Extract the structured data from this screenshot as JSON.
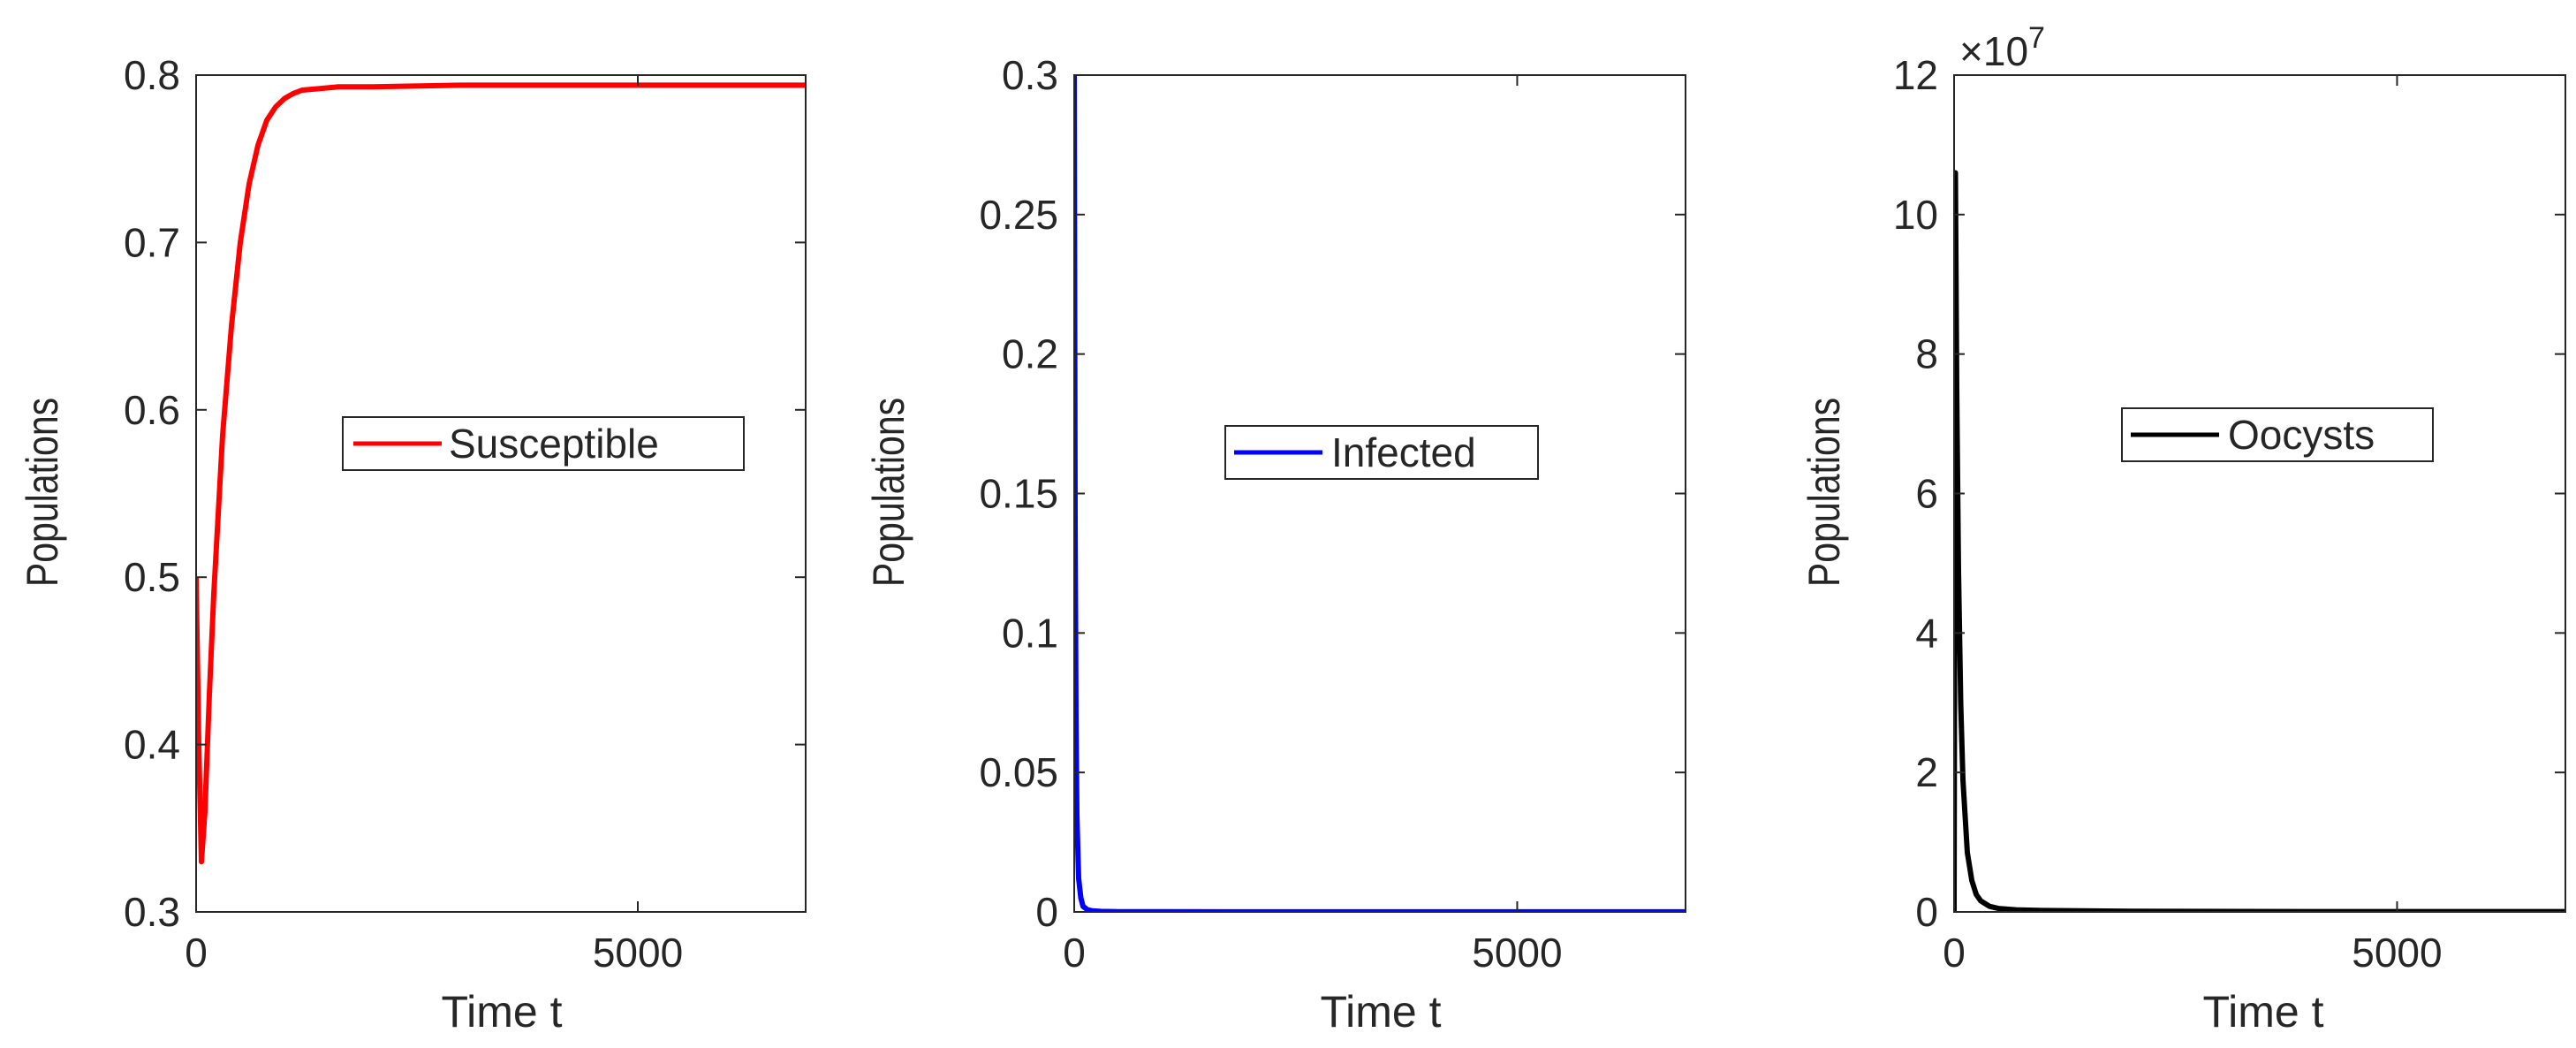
{
  "chart_data": [
    {
      "type": "line",
      "xlabel": "Time t",
      "ylabel": "Populations",
      "xlim": [
        0,
        6900
      ],
      "ylim": [
        0.3,
        0.8
      ],
      "xticks": [
        0,
        5000
      ],
      "xtick_labels": [
        "0",
        "5000"
      ],
      "yticks": [
        0.3,
        0.4,
        0.5,
        0.6,
        0.7,
        0.8
      ],
      "ytick_labels": [
        "0.3",
        "0.4",
        "0.5",
        "0.6",
        "0.7",
        "0.8"
      ],
      "legend_position": "center-right",
      "grid": false,
      "series": [
        {
          "name": "Susceptible",
          "color": "#ff0000",
          "x": [
            0,
            30,
            60,
            100,
            150,
            200,
            300,
            400,
            500,
            600,
            700,
            800,
            900,
            1000,
            1100,
            1200,
            1400,
            1600,
            2000,
            3000,
            4000,
            5000,
            6000,
            6900
          ],
          "y": [
            0.5,
            0.4,
            0.33,
            0.36,
            0.43,
            0.49,
            0.585,
            0.65,
            0.7,
            0.735,
            0.758,
            0.773,
            0.781,
            0.786,
            0.789,
            0.791,
            0.792,
            0.793,
            0.793,
            0.794,
            0.794,
            0.794,
            0.794,
            0.794
          ]
        }
      ]
    },
    {
      "type": "line",
      "xlabel": "Time t",
      "ylabel": "Populations",
      "xlim": [
        0,
        6900
      ],
      "ylim": [
        0,
        0.3
      ],
      "xticks": [
        0,
        5000
      ],
      "xtick_labels": [
        "0",
        "5000"
      ],
      "yticks": [
        0,
        0.05,
        0.1,
        0.15,
        0.2,
        0.25,
        0.3
      ],
      "ytick_labels": [
        "0",
        "0.05",
        "0.1",
        "0.15",
        "0.2",
        "0.25",
        "0.3"
      ],
      "legend_position": "center-right",
      "grid": false,
      "series": [
        {
          "name": "Infected",
          "color": "#0000ff",
          "x": [
            0,
            5,
            10,
            20,
            30,
            50,
            75,
            100,
            150,
            200,
            300,
            500,
            1000,
            3000,
            6900
          ],
          "y": [
            0.3,
            0.22,
            0.14,
            0.07,
            0.035,
            0.012,
            0.005,
            0.002,
            0.0008,
            0.0004,
            0.0002,
            0.0001,
            5e-05,
            3e-05,
            3e-05
          ]
        }
      ]
    },
    {
      "type": "line",
      "xlabel": "Time t",
      "ylabel": "Populations",
      "xlim": [
        0,
        6900
      ],
      "ylim": [
        0,
        12
      ],
      "y_exponent_label": "×10",
      "y_exponent_power": "7",
      "xticks": [
        0,
        5000
      ],
      "xtick_labels": [
        "0",
        "5000"
      ],
      "yticks": [
        0,
        2,
        4,
        6,
        8,
        10,
        12
      ],
      "ytick_labels": [
        "0",
        "2",
        "4",
        "6",
        "8",
        "10",
        "12"
      ],
      "legend_position": "center-right",
      "grid": false,
      "series": [
        {
          "name": "Oocysts",
          "color": "#000000",
          "x": [
            0,
            15,
            30,
            50,
            75,
            100,
            150,
            200,
            250,
            300,
            400,
            500,
            700,
            1000,
            2000,
            4000,
            6900
          ],
          "y": [
            0,
            10.6,
            7.5,
            4.9,
            3.0,
            1.9,
            0.85,
            0.45,
            0.25,
            0.16,
            0.08,
            0.05,
            0.03,
            0.02,
            0.01,
            0.005,
            0.005
          ]
        }
      ]
    }
  ]
}
